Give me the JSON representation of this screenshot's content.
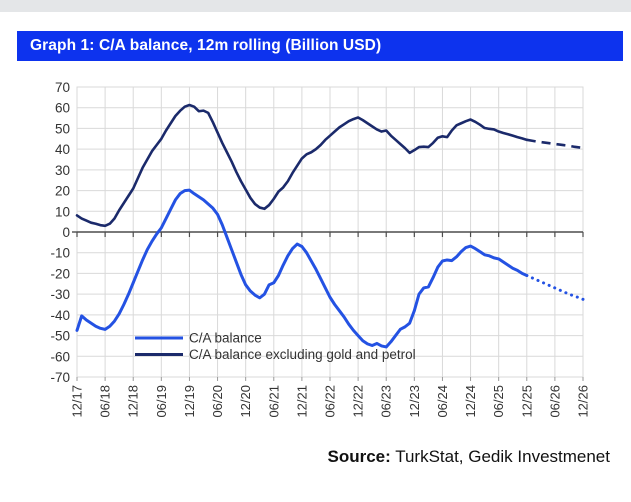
{
  "header": {
    "title": "Graph 1: C/A balance, 12m rolling (Billion USD)",
    "bg_color": "#0d33ee",
    "text_color": "#ffffff"
  },
  "source": {
    "label": "Source:",
    "text": " TurkStat, Gedik Investmenet"
  },
  "chart_data": {
    "type": "line",
    "title": "Graph 1: C/A balance, 12m rolling (Billion USD)",
    "x_unit": "month",
    "x_start": "12/17",
    "x_end": "12/26",
    "x_tick_labels": [
      "12/17",
      "06/18",
      "12/18",
      "06/19",
      "12/19",
      "06/20",
      "12/20",
      "06/21",
      "12/21",
      "06/22",
      "12/22",
      "06/23",
      "12/23",
      "06/24",
      "12/24",
      "06/25",
      "12/25",
      "06/26",
      "12/26"
    ],
    "ylim": [
      -70,
      70
    ],
    "y_tick_step": 10,
    "grid": true,
    "legend_position": "inside-bottom-left",
    "forecast_start_index": 96,
    "series": [
      {
        "name": "C/A balance",
        "color": "#2452e3",
        "line_width": 3,
        "forecast_style": "dotted",
        "values": [
          -47.5,
          -40.5,
          -42.5,
          -44,
          -45.5,
          -46.5,
          -47,
          -45.5,
          -43,
          -39.5,
          -35,
          -30,
          -24.5,
          -19,
          -13.5,
          -8.5,
          -4.5,
          -1,
          2,
          6.5,
          11,
          15.5,
          18.5,
          20,
          20.2,
          18.5,
          17,
          15.5,
          13.5,
          11.5,
          8.5,
          3.5,
          -2.5,
          -8.5,
          -14.5,
          -20.5,
          -25.5,
          -28.5,
          -30.5,
          -31.8,
          -30,
          -25.5,
          -24.5,
          -21,
          -16,
          -11.5,
          -8,
          -5.8,
          -7,
          -10,
          -14,
          -18,
          -22.5,
          -27,
          -31.5,
          -35,
          -38,
          -41,
          -44.5,
          -47.5,
          -50,
          -52.5,
          -54,
          -54.8,
          -53.8,
          -55,
          -55.5,
          -53,
          -50,
          -47,
          -45.8,
          -44,
          -38,
          -30,
          -27,
          -26.5,
          -22,
          -17,
          -14,
          -13.5,
          -13.8,
          -12,
          -9.5,
          -7.5,
          -6.8,
          -8,
          -9.5,
          -11,
          -11.5,
          -12.5,
          -13,
          -14.5,
          -16,
          -17.5,
          -18.5,
          -20,
          -21,
          -22,
          -23,
          -24,
          -25,
          -26,
          -27,
          -28,
          -29,
          -30,
          -30.8,
          -31.6,
          -32.5
        ]
      },
      {
        "name": "C/A balance excluding gold and petrol",
        "color": "#1b2a6b",
        "line_width": 2.6,
        "forecast_style": "dashed",
        "values": [
          8,
          6.5,
          5.5,
          4.5,
          4,
          3.3,
          3,
          4,
          6.5,
          10.5,
          14,
          17.5,
          21,
          26,
          31,
          35,
          39,
          42,
          45,
          49,
          52.5,
          56,
          58.5,
          60.5,
          61.3,
          60.5,
          58.3,
          58.6,
          57.5,
          53,
          48,
          43,
          38.5,
          34,
          29,
          24.5,
          20.5,
          16.5,
          13.5,
          11.8,
          11.2,
          13,
          16,
          19.5,
          21.5,
          24.5,
          28.5,
          32,
          35.5,
          37.5,
          38.5,
          40,
          42,
          44.5,
          46.5,
          48.5,
          50.5,
          52,
          53.5,
          54.5,
          55.3,
          54,
          52.5,
          51,
          49.5,
          48.5,
          49,
          46.5,
          44.5,
          42.5,
          40.5,
          38.2,
          39.5,
          41,
          41.2,
          41,
          43,
          45.5,
          46.2,
          45.8,
          49,
          51.5,
          52.5,
          53.5,
          54.3,
          53.2,
          51.8,
          50.2,
          49.8,
          49.5,
          48.5,
          47.8,
          47.2,
          46.5,
          45.8,
          45.2,
          44.5,
          44.1,
          43.7,
          43.4,
          43.1,
          42.8,
          42.5,
          42.2,
          41.9,
          41.6,
          41.2,
          40.9,
          40.6
        ]
      }
    ]
  }
}
